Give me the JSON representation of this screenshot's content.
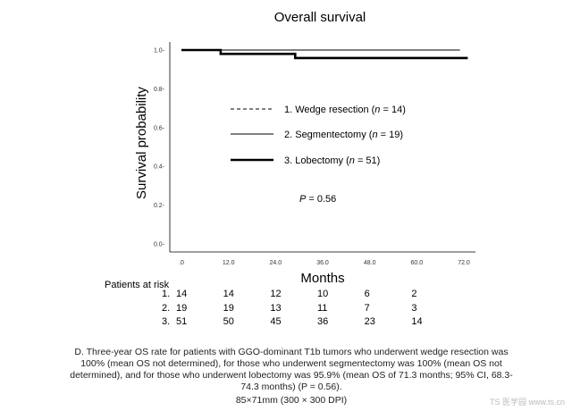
{
  "chart_data": {
    "type": "line",
    "title": "Overall survival",
    "xlabel": "Months",
    "ylabel": "Survival probability",
    "xlim": [
      0,
      74
    ],
    "ylim": [
      0,
      1.0
    ],
    "x_ticks": [
      0,
      12,
      24,
      36,
      48,
      60,
      72
    ],
    "x_tick_labels": [
      ".0",
      "12.0",
      "24.0",
      "36.0",
      "48.0",
      "60.0",
      "72.0"
    ],
    "y_ticks": [
      0,
      0.2,
      0.4,
      0.6,
      0.8,
      1.0
    ],
    "y_tick_labels": [
      "0.0-",
      "0.2-",
      "0.4-",
      "0.6-",
      "0.8-",
      "1.0-"
    ],
    "series": [
      {
        "name": "1. Wedge resection (",
        "name_italic": "n",
        "name_suffix": " = 14)",
        "style": "dashed",
        "x": [
          0,
          71
        ],
        "y": [
          1.0,
          1.0
        ]
      },
      {
        "name": "2. Segmentectomy (",
        "name_italic": "n",
        "name_suffix": " = 19)",
        "style": "thin",
        "x": [
          0,
          70.5
        ],
        "y": [
          1.0,
          1.0
        ]
      },
      {
        "name": "3. Lobectomy (",
        "name_italic": "n",
        "name_suffix": " = 51)",
        "style": "thick",
        "x": [
          0,
          10,
          10,
          29,
          29,
          73
        ],
        "y": [
          1.0,
          1.0,
          0.98,
          0.98,
          0.959,
          0.959
        ]
      }
    ],
    "annotation": {
      "italic": "P",
      "text": " = 0.56"
    },
    "risk_table": {
      "title": "Patients at risk",
      "rows": [
        {
          "label": "1.",
          "values": [
            "14",
            "14",
            "12",
            "10",
            "6",
            "2"
          ]
        },
        {
          "label": "2.",
          "values": [
            "19",
            "19",
            "13",
            "11",
            "7",
            "3"
          ]
        },
        {
          "label": "3.",
          "values": [
            "51",
            "50",
            "45",
            "36",
            "23",
            "14"
          ]
        }
      ]
    }
  },
  "caption": {
    "lines": [
      "D. Three-year OS rate for patients with GGO-dominant T1b tumors who underwent wedge resection was",
      "100% (mean OS not determined), for those who underwent segmentectomy was 100% (mean OS not",
      "determined), and for those who underwent lobectomy was 95.9% (mean OS of 71.3 months; 95% CI, 68.3-",
      "74.3 months) (P = 0.56)."
    ],
    "size_note": "85×71mm (300 × 300 DPI)"
  },
  "watermark": "TS 医学园 www.ts.cn"
}
